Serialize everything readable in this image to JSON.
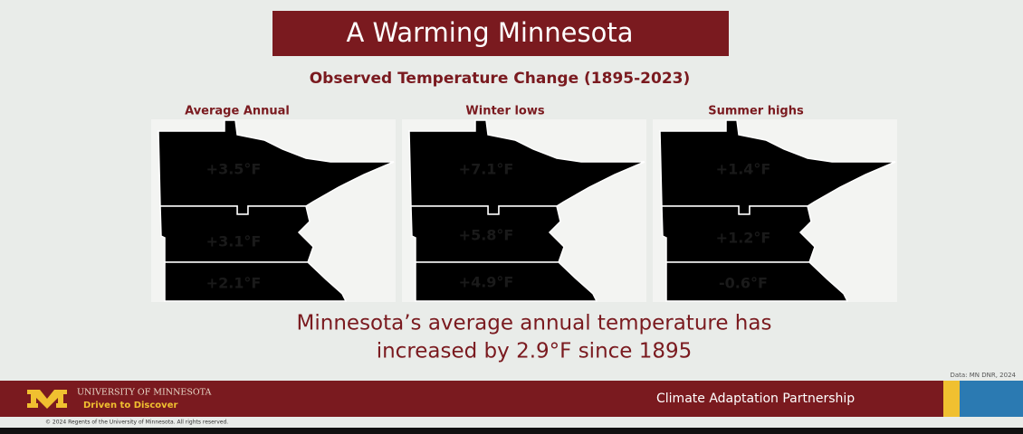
{
  "header": {
    "title": "A Warming Minnesota",
    "subtitle": "Observed Temperature Change (1895-2023)"
  },
  "maps": [
    {
      "label": "Average Annual",
      "regions": [
        "+3.5°F",
        "+3.1°F",
        "+2.1°F"
      ]
    },
    {
      "label": "Winter lows",
      "regions": [
        "+7.1°F",
        "+5.8°F",
        "+4.9°F"
      ]
    },
    {
      "label": "Summer highs",
      "regions": [
        "+1.4°F",
        "+1.2°F",
        "-0.6°F"
      ]
    }
  ],
  "statement": [
    "Minnesota’s average annual temperature has",
    "increased by 2.9°F since 1895"
  ],
  "source": "Data: MN DNR, 2024",
  "footer": {
    "university": "UNIVERSITY OF MINNESOTA",
    "tagline": "Driven to Discover",
    "partnership": "Climate Adaptation Partnership",
    "copyright": "© 2024 Regents of the University of Minnesota. All rights reserved."
  }
}
